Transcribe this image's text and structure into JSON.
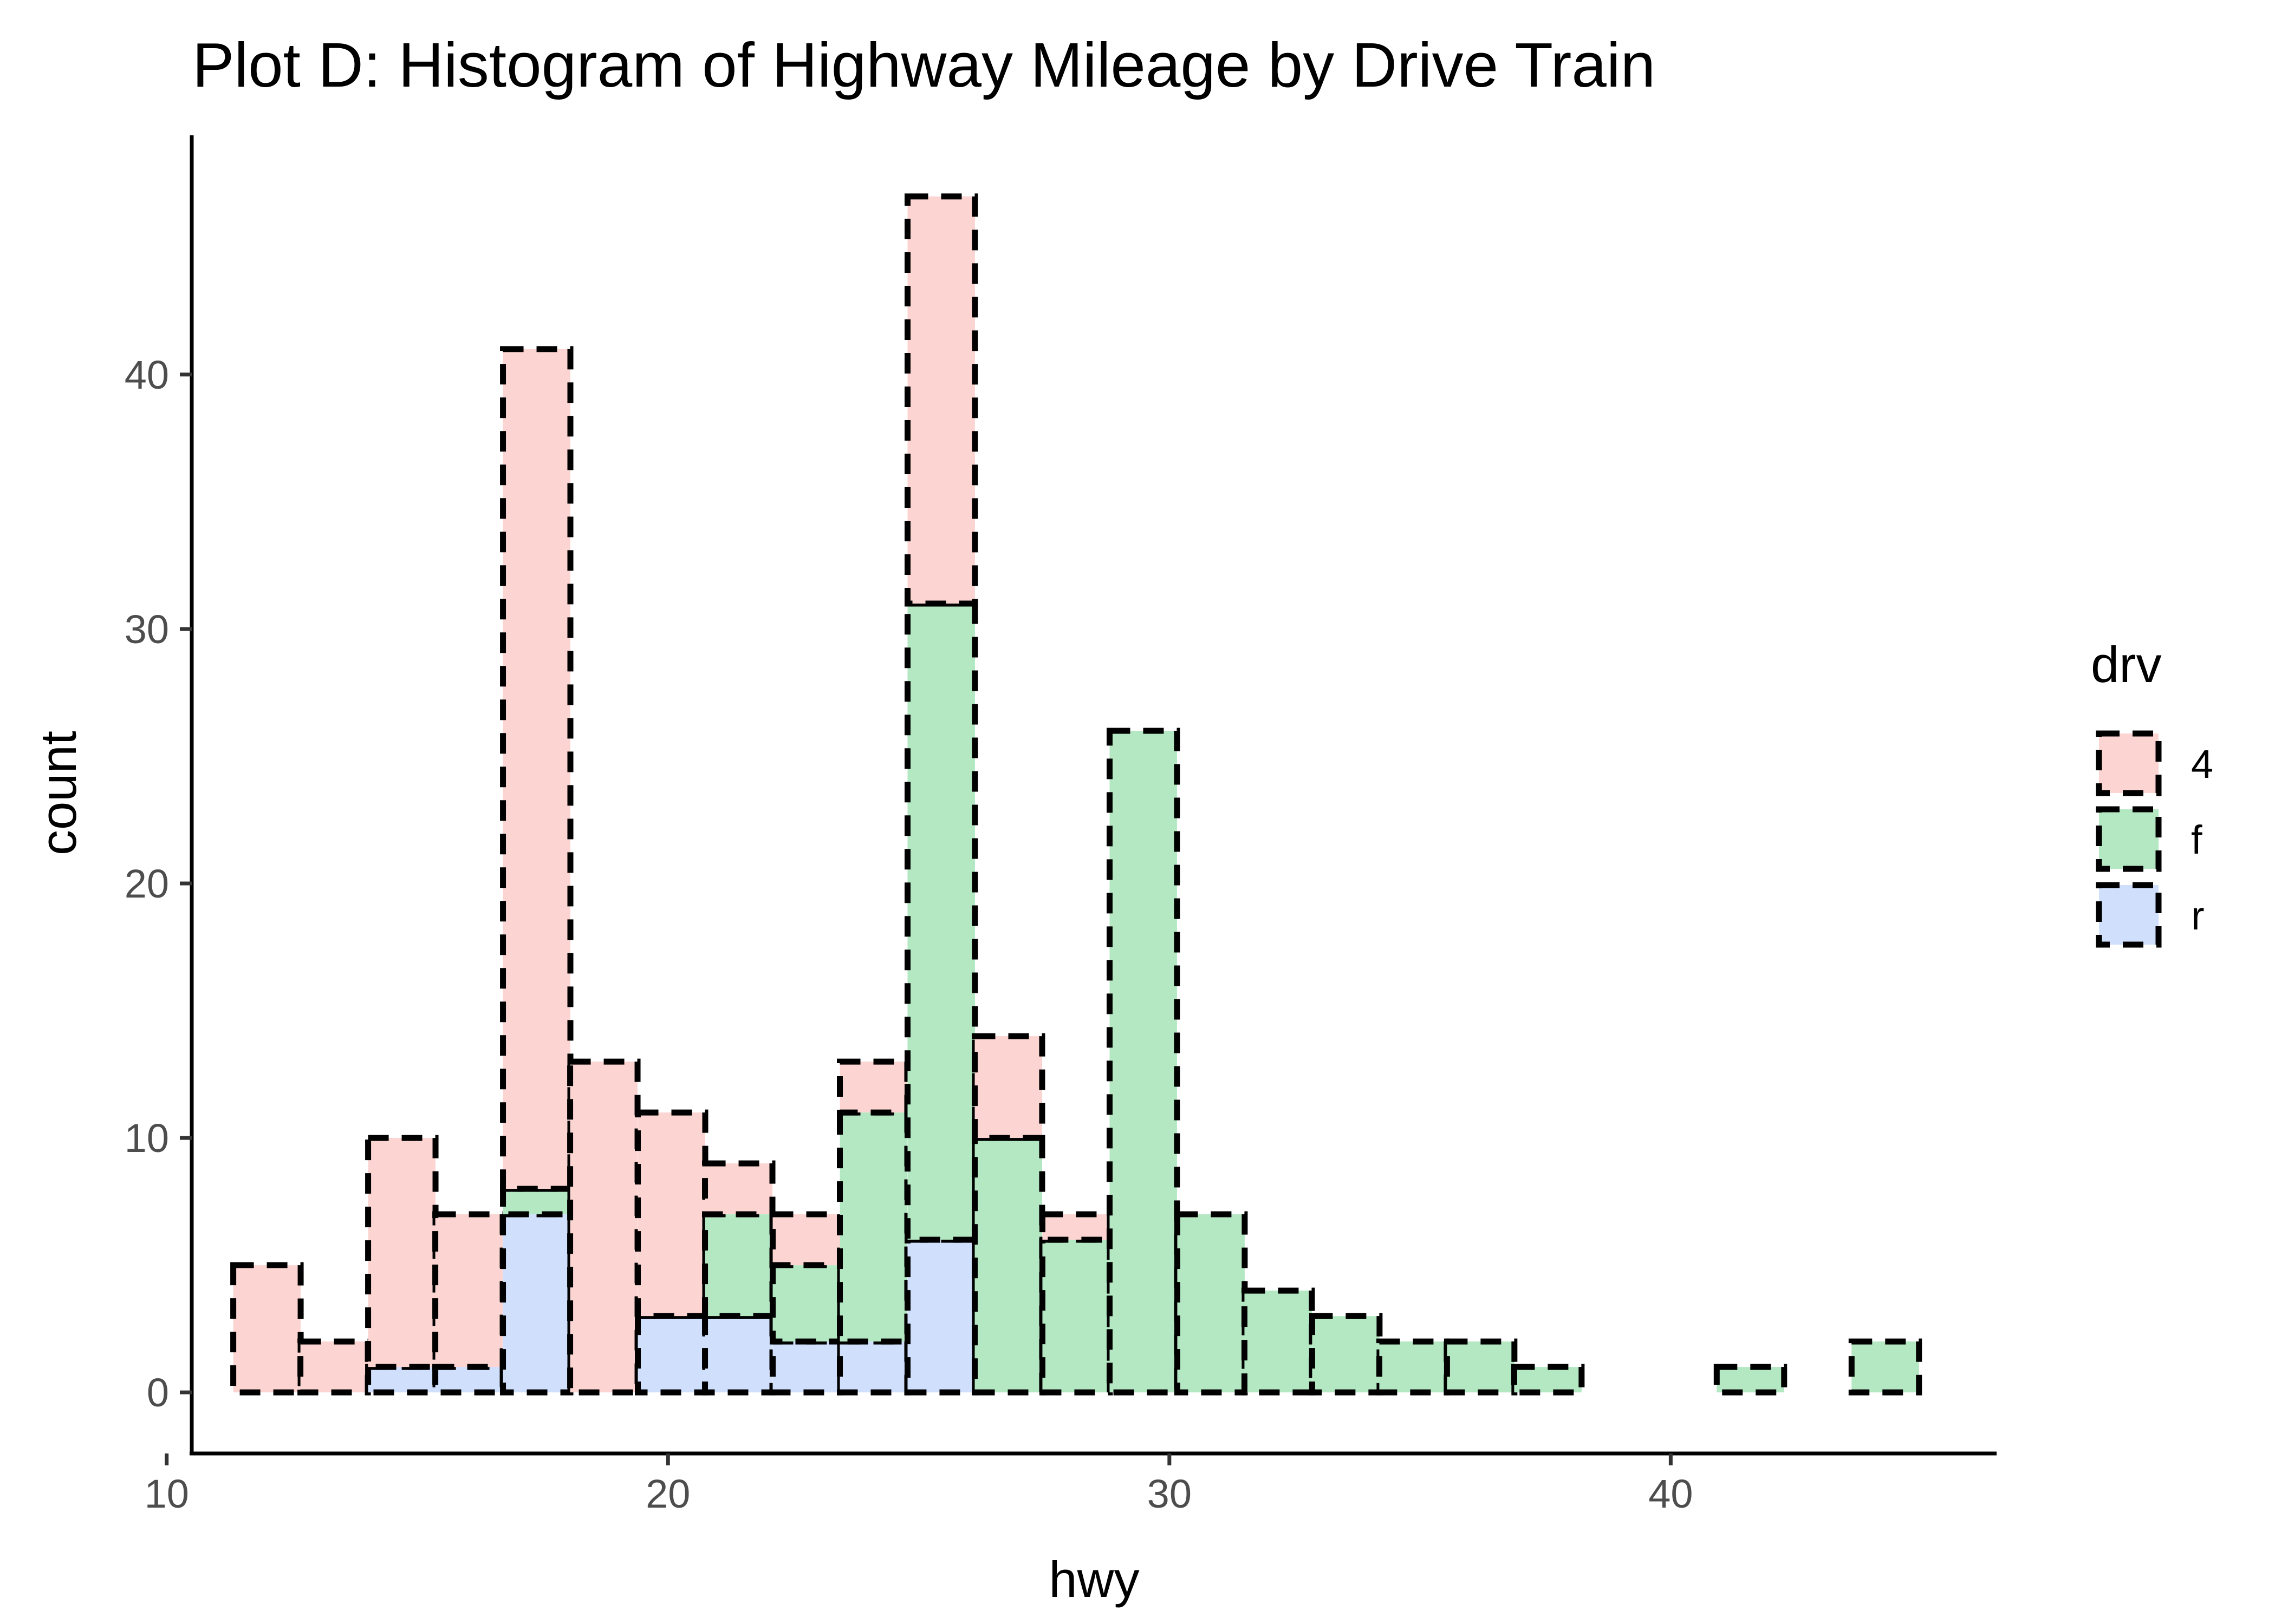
{
  "chart_data": {
    "type": "bar",
    "subtype": "stacked-histogram",
    "title": "Plot D: Histogram of Highway Mileage by Drive Train",
    "xlabel": "hwy",
    "ylabel": "count",
    "xlim": [
      10.5,
      46.5
    ],
    "ylim": [
      -2.4,
      49.4
    ],
    "x_ticks": [
      10,
      20,
      30,
      40
    ],
    "y_ticks": [
      0,
      10,
      20,
      30,
      40
    ],
    "grid": false,
    "bin_width": 1.3448,
    "bin_centers": [
      12.0,
      13.34,
      14.69,
      16.03,
      17.38,
      18.72,
      20.07,
      21.41,
      22.76,
      24.1,
      25.45,
      26.79,
      28.14,
      29.48,
      30.83,
      32.17,
      33.52,
      34.86,
      36.21,
      37.55,
      38.9,
      40.24,
      41.59,
      42.93,
      44.28
    ],
    "legend": {
      "title": "drv",
      "position": "right"
    },
    "series": [
      {
        "name": "r",
        "color": "#cfdffc",
        "values": [
          0,
          0,
          1,
          1,
          7,
          0,
          3,
          3,
          2,
          2,
          6,
          0,
          0,
          0,
          0,
          0,
          0,
          0,
          0,
          0,
          0,
          0,
          0,
          0,
          0
        ]
      },
      {
        "name": "f",
        "color": "#b3e8c3",
        "values": [
          0,
          0,
          0,
          0,
          1,
          0,
          0,
          4,
          3,
          9,
          25,
          10,
          6,
          26,
          7,
          4,
          3,
          2,
          2,
          1,
          0,
          0,
          1,
          0,
          2
        ]
      },
      {
        "name": "4",
        "color": "#fcd5d2",
        "values": [
          5,
          2,
          9,
          6,
          33,
          13,
          8,
          2,
          2,
          2,
          16,
          4,
          1,
          0,
          0,
          0,
          0,
          0,
          0,
          0,
          0,
          0,
          0,
          0,
          0
        ]
      }
    ],
    "legend_order": [
      "4",
      "f",
      "r"
    ]
  }
}
